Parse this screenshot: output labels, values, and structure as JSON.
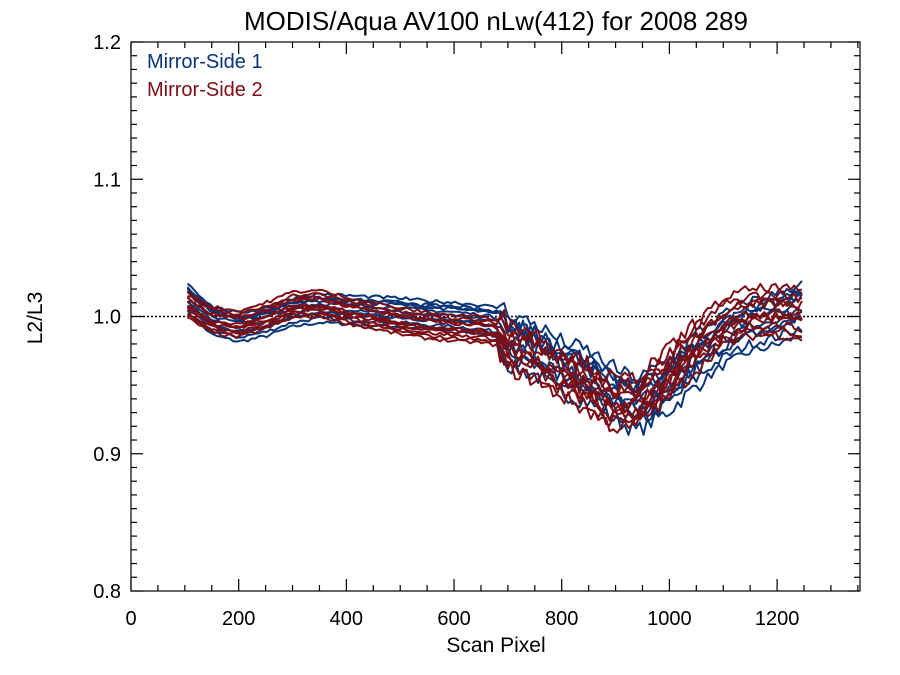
{
  "chart_data": {
    "type": "line",
    "title": "MODIS/Aqua AV100 nLw(412) for 2008 289",
    "xlabel": "Scan Pixel",
    "ylabel": "L2/L3",
    "xlim": [
      0,
      1354
    ],
    "ylim": [
      0.8,
      1.2
    ],
    "x_ticks": [
      0,
      200,
      400,
      600,
      800,
      1000,
      1200
    ],
    "x_tick_labels": [
      "0",
      "200",
      "400",
      "600",
      "800",
      "1000",
      "1200"
    ],
    "y_ticks": [
      0.8,
      0.9,
      1.0,
      1.1,
      1.2
    ],
    "y_tick_labels": [
      "0.8",
      "0.9",
      "1.0",
      "1.1",
      "1.2"
    ],
    "reference_line": {
      "y": 1.0,
      "style": "dotted"
    },
    "grid": false,
    "legend": {
      "placement": "top-left",
      "entries": [
        {
          "label": "Mirror-Side 1",
          "color": "#0a3576"
        },
        {
          "label": "Mirror-Side 2",
          "color": "#7d0e16"
        }
      ]
    },
    "series": [
      {
        "name": "Mirror-Side 1",
        "color": "#0a3576",
        "x": [
          105,
          150,
          200,
          250,
          300,
          350,
          400,
          450,
          500,
          550,
          600,
          650,
          680,
          700,
          750,
          800,
          850,
          900,
          940,
          1000,
          1050,
          1100,
          1150,
          1200,
          1250
        ],
        "y": [
          1.015,
          0.998,
          0.993,
          0.997,
          1.004,
          1.007,
          1.006,
          1.005,
          1.004,
          1.002,
          1.001,
          0.999,
          0.997,
          0.985,
          0.978,
          0.965,
          0.958,
          0.945,
          0.937,
          0.952,
          0.97,
          0.985,
          0.995,
          1.0,
          1.008
        ]
      },
      {
        "name": "Mirror-Side 2",
        "color": "#7d0e16",
        "x": [
          105,
          150,
          200,
          250,
          300,
          350,
          400,
          450,
          500,
          550,
          600,
          650,
          680,
          700,
          750,
          800,
          850,
          900,
          940,
          1000,
          1050,
          1100,
          1150,
          1200,
          1250
        ],
        "y": [
          1.008,
          0.997,
          0.994,
          1.0,
          1.008,
          1.009,
          1.004,
          1.0,
          0.996,
          0.993,
          0.991,
          0.99,
          0.988,
          0.978,
          0.97,
          0.958,
          0.947,
          0.935,
          0.938,
          0.958,
          0.978,
          0.995,
          1.002,
          1.003,
          1.0
        ]
      }
    ]
  }
}
